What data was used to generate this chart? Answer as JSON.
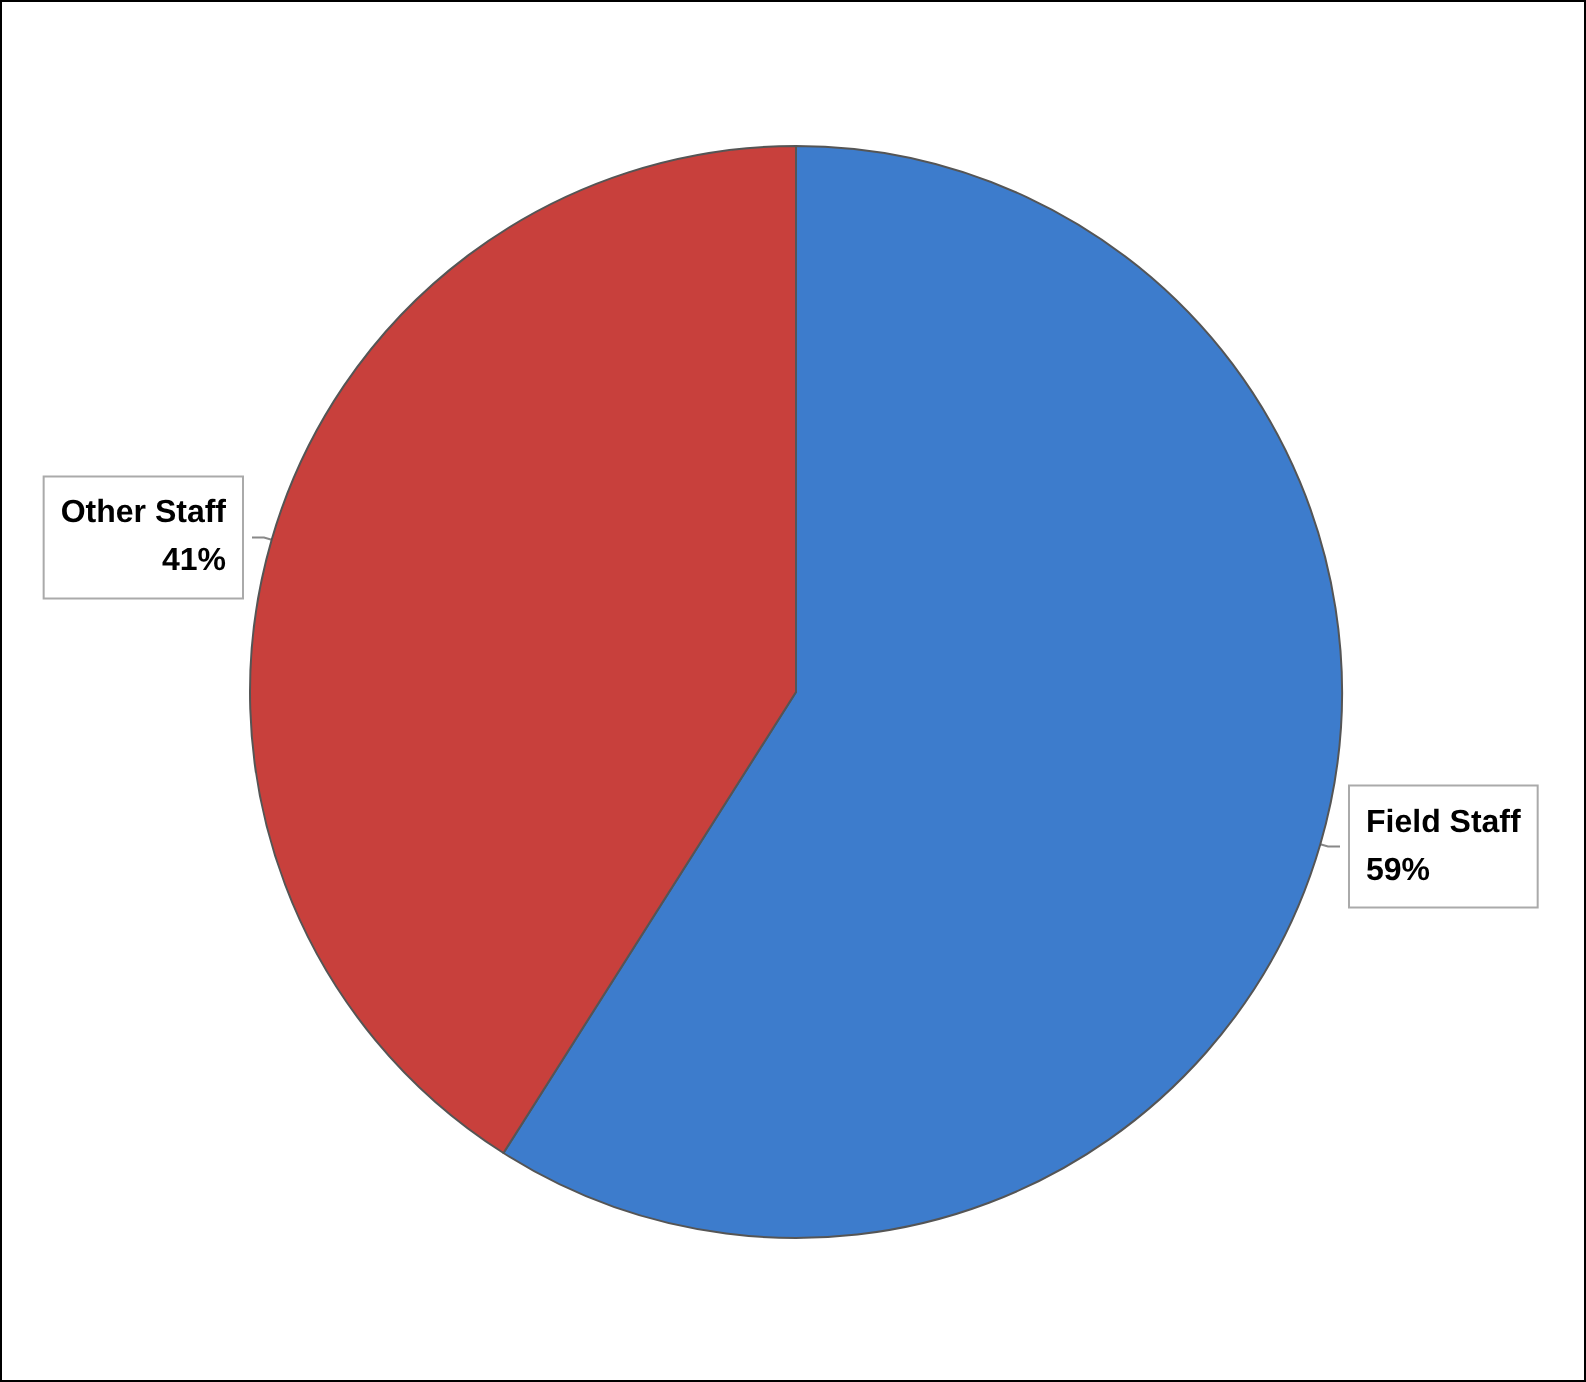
{
  "chart_data": {
    "type": "pie",
    "categories": [
      "Field Staff",
      "Other Staff"
    ],
    "values": [
      59,
      41
    ],
    "value_labels": [
      "59%",
      "41%"
    ],
    "colors": [
      "#3d7ccc",
      "#c8403c"
    ],
    "legend": false
  }
}
